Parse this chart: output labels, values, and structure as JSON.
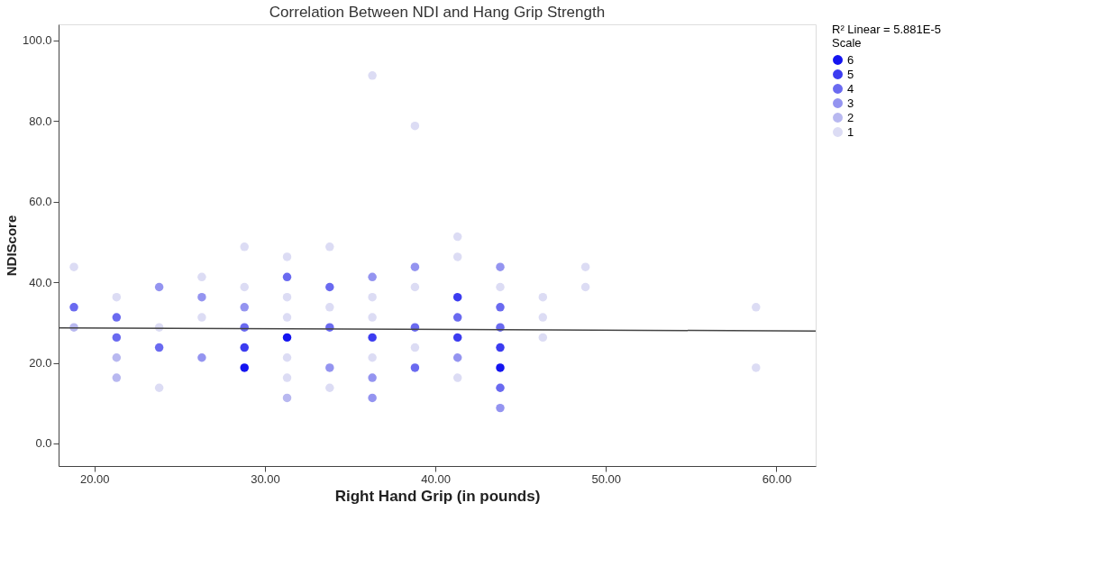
{
  "chart_data": {
    "type": "scatter",
    "title": "Correlation Between NDI and Hang Grip Strength",
    "xlabel": "Right Hand Grip (in pounds)",
    "ylabel": "NDIScore",
    "legend_title": "Scale",
    "annotations": [
      "R² Linear = 5.881E-5"
    ],
    "xlim": [
      17.9,
      62.3
    ],
    "ylim": [
      -5.6,
      104
    ],
    "xticks": [
      {
        "value": 20,
        "label": "20.00"
      },
      {
        "value": 30,
        "label": "30.00"
      },
      {
        "value": 40,
        "label": "40.00"
      },
      {
        "value": 50,
        "label": "50.00"
      },
      {
        "value": 60,
        "label": "60.00"
      }
    ],
    "yticks": [
      {
        "value": 0,
        "label": "0.0"
      },
      {
        "value": 20,
        "label": "20.0"
      },
      {
        "value": 40,
        "label": "40.0"
      },
      {
        "value": 60,
        "label": "60.0"
      },
      {
        "value": 80,
        "label": "80.0"
      },
      {
        "value": 100,
        "label": "100.0"
      }
    ],
    "grid": false,
    "legend": "top right",
    "marker": "circle",
    "series": [
      {
        "name": "6",
        "color": "#1414f0",
        "x": [
          28.8,
          31.3,
          43.8
        ],
        "values": [
          18.8,
          26.3,
          18.8
        ]
      },
      {
        "name": "5",
        "color": "#3c3cf0",
        "x": [
          28.8,
          36.3,
          41.3,
          41.3,
          43.8
        ],
        "values": [
          23.8,
          26.3,
          36.3,
          26.3,
          23.8
        ]
      },
      {
        "name": "4",
        "color": "#6a6af0",
        "x": [
          18.8,
          21.3,
          21.3,
          23.8,
          28.8,
          31.3,
          33.8,
          33.8,
          38.8,
          38.8,
          41.3,
          43.8,
          43.8,
          43.8
        ],
        "values": [
          33.8,
          31.3,
          26.3,
          23.8,
          28.8,
          41.3,
          38.8,
          28.8,
          28.8,
          18.8,
          31.3,
          33.8,
          28.8,
          13.8
        ]
      },
      {
        "name": "3",
        "color": "#9494f0",
        "x": [
          23.8,
          26.3,
          26.3,
          28.8,
          33.8,
          36.3,
          36.3,
          36.3,
          38.8,
          41.3,
          43.8,
          43.8
        ],
        "values": [
          38.8,
          36.3,
          21.3,
          33.8,
          18.8,
          41.3,
          16.3,
          11.3,
          43.8,
          21.3,
          43.8,
          8.8
        ]
      },
      {
        "name": "2",
        "color": "#b8b8f0",
        "x": [
          18.8,
          21.3,
          21.3,
          31.3
        ],
        "values": [
          28.8,
          21.3,
          16.3,
          11.3
        ]
      },
      {
        "name": "1",
        "color": "#dcdcf4",
        "x": [
          18.8,
          21.3,
          23.8,
          23.8,
          26.3,
          26.3,
          28.8,
          28.8,
          31.3,
          31.3,
          31.3,
          31.3,
          31.3,
          33.8,
          33.8,
          33.8,
          36.3,
          36.3,
          36.3,
          36.3,
          38.8,
          38.8,
          38.8,
          41.3,
          41.3,
          41.3,
          43.8,
          46.3,
          46.3,
          46.3,
          48.8,
          48.8,
          58.8,
          58.8
        ],
        "values": [
          43.8,
          36.3,
          28.8,
          13.8,
          41.3,
          31.3,
          48.8,
          38.8,
          46.3,
          36.3,
          31.3,
          21.3,
          16.3,
          48.8,
          33.8,
          13.8,
          91.3,
          36.3,
          31.3,
          21.3,
          78.8,
          38.8,
          23.8,
          51.3,
          46.3,
          16.3,
          38.8,
          36.3,
          31.3,
          26.3,
          43.8,
          38.8,
          33.8,
          18.8
        ]
      },
      {
        "type": "line",
        "marker": "none",
        "color": "#444444",
        "x": [
          17.9,
          62.3
        ],
        "values": [
          28.7,
          27.9
        ]
      }
    ]
  }
}
